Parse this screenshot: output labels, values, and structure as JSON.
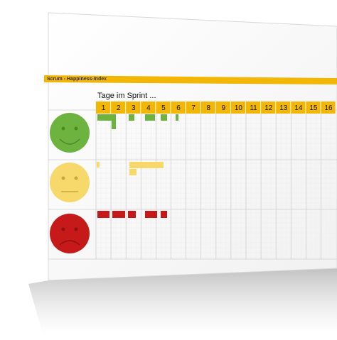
{
  "header": {
    "title": "Scrum - Happiness-Index",
    "subtitle": "Tage im Sprint ..."
  },
  "days": [
    "1",
    "2",
    "3",
    "4",
    "5",
    "6",
    "7",
    "8",
    "9",
    "10",
    "11",
    "12",
    "13",
    "14",
    "15",
    "16"
  ]
}
